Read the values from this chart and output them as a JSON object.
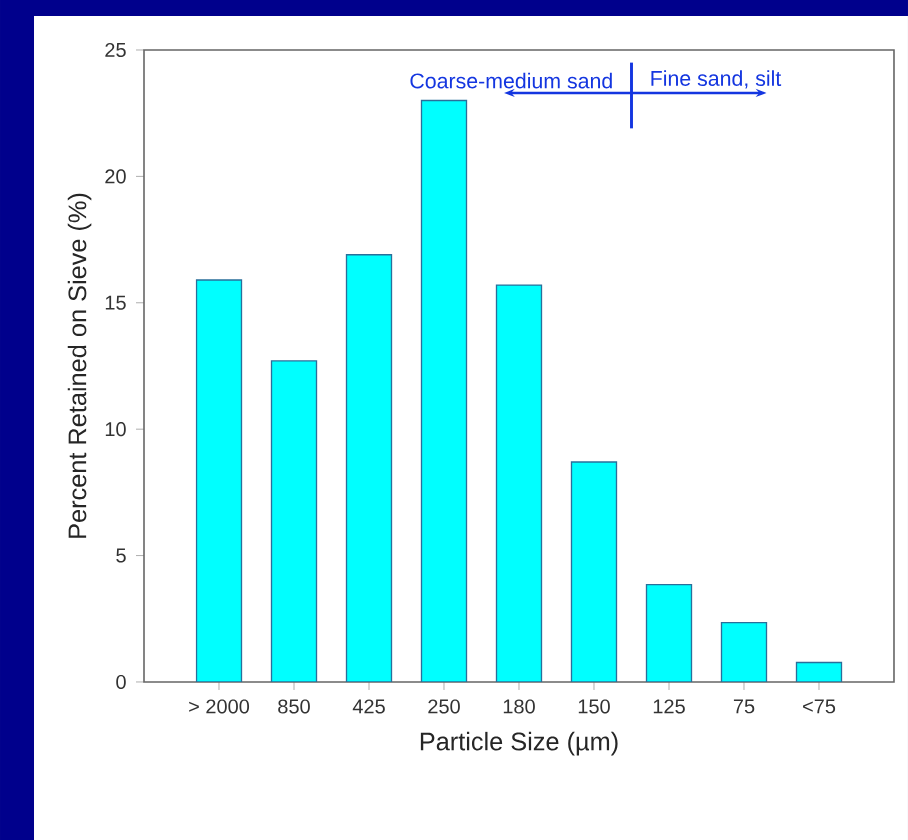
{
  "chart_data": {
    "type": "bar",
    "xlabel": "Particle Size (µm)",
    "ylabel": "Percent Retained on Sieve (%)",
    "categories": [
      "> 2000",
      "850",
      "425",
      "250",
      "180",
      "150",
      "125",
      "75",
      "<75"
    ],
    "values": [
      15.9,
      12.7,
      16.9,
      23.0,
      15.7,
      8.7,
      3.85,
      2.35,
      0.77
    ],
    "color": "#00ffff",
    "ylim": [
      0,
      25
    ],
    "yticks": [
      0,
      5,
      10,
      15,
      20,
      25
    ],
    "annotations": [
      "Coarse-medium sand",
      "Fine sand, silt"
    ]
  }
}
